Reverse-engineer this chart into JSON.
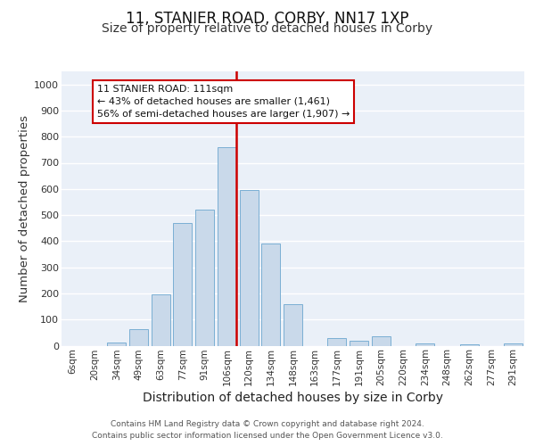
{
  "title": "11, STANIER ROAD, CORBY, NN17 1XP",
  "subtitle": "Size of property relative to detached houses in Corby",
  "xlabel": "Distribution of detached houses by size in Corby",
  "ylabel": "Number of detached properties",
  "categories": [
    "6sqm",
    "20sqm",
    "34sqm",
    "49sqm",
    "63sqm",
    "77sqm",
    "91sqm",
    "106sqm",
    "120sqm",
    "134sqm",
    "148sqm",
    "163sqm",
    "177sqm",
    "191sqm",
    "205sqm",
    "220sqm",
    "234sqm",
    "248sqm",
    "262sqm",
    "277sqm",
    "291sqm"
  ],
  "values": [
    0,
    0,
    12,
    62,
    195,
    470,
    520,
    760,
    595,
    390,
    160,
    0,
    30,
    20,
    35,
    0,
    8,
    0,
    5,
    0,
    8
  ],
  "bar_color": "#c9d9ea",
  "bar_edge_color": "#7bafd4",
  "vline_color": "#cc0000",
  "vline_pos": 7.43,
  "annotation_text": "11 STANIER ROAD: 111sqm\n← 43% of detached houses are smaller (1,461)\n56% of semi-detached houses are larger (1,907) →",
  "footer_line1": "Contains HM Land Registry data © Crown copyright and database right 2024.",
  "footer_line2": "Contains public sector information licensed under the Open Government Licence v3.0.",
  "ylim": [
    0,
    1050
  ],
  "yticks": [
    0,
    100,
    200,
    300,
    400,
    500,
    600,
    700,
    800,
    900,
    1000
  ],
  "bg_color": "#eaf0f8",
  "grid_color": "#ffffff",
  "title_fontsize": 12,
  "subtitle_fontsize": 10,
  "axis_label_fontsize": 9.5,
  "tick_fontsize": 7.5,
  "footer_fontsize": 6.5
}
